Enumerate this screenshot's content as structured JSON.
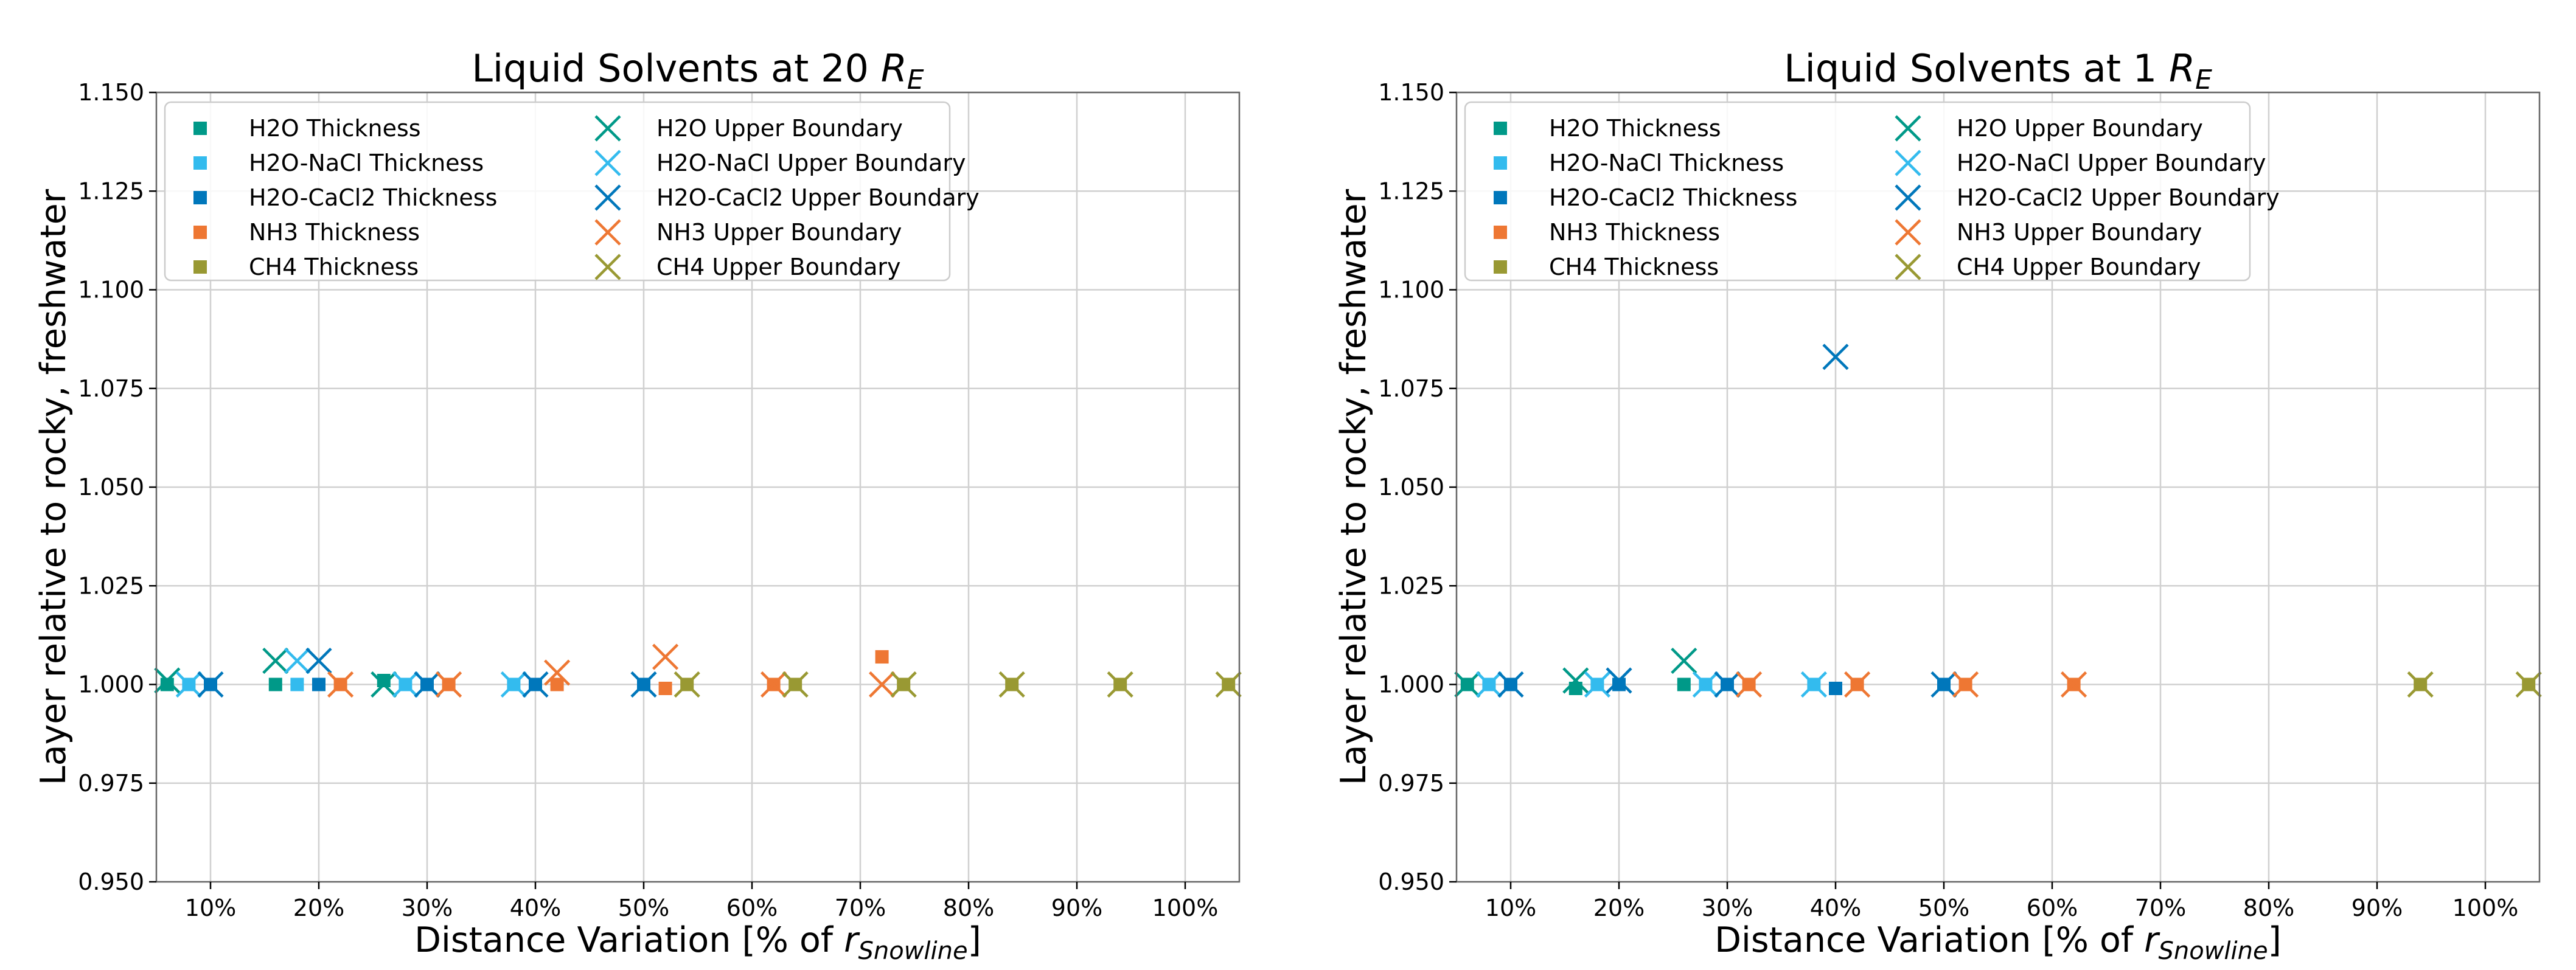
{
  "colors": {
    "h2o": "#009988",
    "nacl": "#33BBEE",
    "cacl2": "#0077BB",
    "nh3": "#EE7733",
    "ch4": "#999933",
    "grid": "#d0d0d0",
    "axis": "#666666"
  },
  "chart_data": [
    {
      "type": "scatter",
      "title": "Liquid Solvents at 20 ",
      "title_math": "R",
      "title_sub": "E",
      "xlabel": "Distance Variation [% of ",
      "xlabel_math": "r",
      "xlabel_sub": "Snowline",
      "xlabel_end": "]",
      "ylabel": "Layer relative to rocky, freshwater",
      "xlim": [
        5,
        105
      ],
      "ylim": [
        0.95,
        1.15
      ],
      "xticks": [
        10,
        20,
        30,
        40,
        50,
        60,
        70,
        80,
        90,
        100
      ],
      "xticklabels": [
        "10%",
        "20%",
        "30%",
        "40%",
        "50%",
        "60%",
        "70%",
        "80%",
        "90%",
        "100%"
      ],
      "yticks": [
        0.95,
        0.975,
        1.0,
        1.025,
        1.05,
        1.075,
        1.1,
        1.125,
        1.15
      ],
      "yticklabels": [
        "0.950",
        "0.975",
        "1.000",
        "1.025",
        "1.050",
        "1.075",
        "1.100",
        "1.125",
        "1.150"
      ],
      "legend_loc": "upper-left",
      "legend": [
        "H2O Thickness",
        "H2O-NaCl Thickness",
        "H2O-CaCl2 Thickness",
        "NH3 Thickness",
        "CH4 Thickness",
        "H2O Upper Boundary",
        "H2O-NaCl Upper Boundary",
        "H2O-CaCl2 Upper Boundary",
        "NH3 Upper Boundary",
        "CH4 Upper Boundary"
      ],
      "series": [
        {
          "name": "H2O Thickness",
          "solvent": "h2o",
          "marker": "square",
          "x": [
            6,
            16,
            26
          ],
          "y": [
            1.0,
            1.0,
            1.001
          ]
        },
        {
          "name": "H2O-NaCl Thickness",
          "solvent": "nacl",
          "marker": "square",
          "x": [
            8,
            18,
            28,
            38
          ],
          "y": [
            1.0,
            1.0,
            1.0,
            1.0
          ]
        },
        {
          "name": "H2O-CaCl2 Thickness",
          "solvent": "cacl2",
          "marker": "square",
          "x": [
            10,
            20,
            30,
            40,
            50
          ],
          "y": [
            1.0,
            1.0,
            1.0,
            1.0,
            1.0
          ]
        },
        {
          "name": "NH3 Thickness",
          "solvent": "nh3",
          "marker": "square",
          "x": [
            22,
            32,
            42,
            52,
            62,
            72
          ],
          "y": [
            1.0,
            1.0,
            1.0,
            0.999,
            1.0,
            1.007
          ]
        },
        {
          "name": "CH4 Thickness",
          "solvent": "ch4",
          "marker": "square",
          "x": [
            54,
            64,
            74,
            84,
            94,
            104
          ],
          "y": [
            1.0,
            1.0,
            1.0,
            1.0,
            1.0,
            1.0
          ]
        },
        {
          "name": "H2O Upper Boundary",
          "solvent": "h2o",
          "marker": "x",
          "x": [
            6,
            16,
            26
          ],
          "y": [
            1.001,
            1.006,
            1.0
          ]
        },
        {
          "name": "H2O-NaCl Upper Boundary",
          "solvent": "nacl",
          "marker": "x",
          "x": [
            8,
            18,
            28,
            38
          ],
          "y": [
            1.0,
            1.006,
            1.0,
            1.0
          ]
        },
        {
          "name": "H2O-CaCl2 Upper Boundary",
          "solvent": "cacl2",
          "marker": "x",
          "x": [
            10,
            20,
            30,
            40,
            50
          ],
          "y": [
            1.0,
            1.006,
            1.0,
            1.0,
            1.0
          ]
        },
        {
          "name": "NH3 Upper Boundary",
          "solvent": "nh3",
          "marker": "x",
          "x": [
            22,
            32,
            42,
            52,
            62,
            72
          ],
          "y": [
            1.0,
            1.0,
            1.003,
            1.007,
            1.0,
            1.0
          ]
        },
        {
          "name": "CH4 Upper Boundary",
          "solvent": "ch4",
          "marker": "x",
          "x": [
            54,
            64,
            74,
            84,
            94,
            104
          ],
          "y": [
            1.0,
            1.0,
            1.0,
            1.0,
            1.0,
            1.0
          ]
        }
      ]
    },
    {
      "type": "scatter",
      "title": "Liquid Solvents at 1 ",
      "title_math": "R",
      "title_sub": "E",
      "xlabel": "Distance Variation [% of ",
      "xlabel_math": "r",
      "xlabel_sub": "Snowline",
      "xlabel_end": "]",
      "ylabel": "Layer relative to rocky, freshwater",
      "xlim": [
        5,
        105
      ],
      "ylim": [
        0.95,
        1.15
      ],
      "xticks": [
        10,
        20,
        30,
        40,
        50,
        60,
        70,
        80,
        90,
        100
      ],
      "xticklabels": [
        "10%",
        "20%",
        "30%",
        "40%",
        "50%",
        "60%",
        "70%",
        "80%",
        "90%",
        "100%"
      ],
      "yticks": [
        0.95,
        0.975,
        1.0,
        1.025,
        1.05,
        1.075,
        1.1,
        1.125,
        1.15
      ],
      "yticklabels": [
        "0.950",
        "0.975",
        "1.000",
        "1.025",
        "1.050",
        "1.075",
        "1.100",
        "1.125",
        "1.150"
      ],
      "legend_loc": "upper-left",
      "legend": [
        "H2O Thickness",
        "H2O-NaCl Thickness",
        "H2O-CaCl2 Thickness",
        "NH3 Thickness",
        "CH4 Thickness",
        "H2O Upper Boundary",
        "H2O-NaCl Upper Boundary",
        "H2O-CaCl2 Upper Boundary",
        "NH3 Upper Boundary",
        "CH4 Upper Boundary"
      ],
      "series": [
        {
          "name": "H2O Thickness",
          "solvent": "h2o",
          "marker": "square",
          "x": [
            6,
            16,
            26
          ],
          "y": [
            1.0,
            0.999,
            1.0
          ]
        },
        {
          "name": "H2O-NaCl Thickness",
          "solvent": "nacl",
          "marker": "square",
          "x": [
            8,
            18,
            28,
            38
          ],
          "y": [
            1.0,
            1.0,
            1.0,
            1.0
          ]
        },
        {
          "name": "H2O-CaCl2 Thickness",
          "solvent": "cacl2",
          "marker": "square",
          "x": [
            10,
            20,
            30,
            40,
            50
          ],
          "y": [
            1.0,
            1.0,
            1.0,
            0.999,
            1.0
          ]
        },
        {
          "name": "NH3 Thickness",
          "solvent": "nh3",
          "marker": "square",
          "x": [
            32,
            42,
            52,
            62
          ],
          "y": [
            1.0,
            1.0,
            1.0,
            1.0
          ]
        },
        {
          "name": "CH4 Thickness",
          "solvent": "ch4",
          "marker": "square",
          "x": [
            94,
            104
          ],
          "y": [
            1.0,
            1.0
          ]
        },
        {
          "name": "H2O Upper Boundary",
          "solvent": "h2o",
          "marker": "x",
          "x": [
            6,
            16,
            26
          ],
          "y": [
            1.0,
            1.001,
            1.006
          ]
        },
        {
          "name": "H2O-NaCl Upper Boundary",
          "solvent": "nacl",
          "marker": "x",
          "x": [
            8,
            18,
            28,
            38
          ],
          "y": [
            1.0,
            1.0,
            1.0,
            1.0
          ]
        },
        {
          "name": "H2O-CaCl2 Upper Boundary",
          "solvent": "cacl2",
          "marker": "x",
          "x": [
            10,
            20,
            30,
            40,
            50
          ],
          "y": [
            1.0,
            1.001,
            1.0,
            1.083,
            1.0
          ]
        },
        {
          "name": "NH3 Upper Boundary",
          "solvent": "nh3",
          "marker": "x",
          "x": [
            32,
            42,
            52,
            62
          ],
          "y": [
            1.0,
            1.0,
            1.0,
            1.0
          ]
        },
        {
          "name": "CH4 Upper Boundary",
          "solvent": "ch4",
          "marker": "x",
          "x": [
            94,
            104
          ],
          "y": [
            1.0,
            1.0
          ]
        }
      ]
    }
  ]
}
